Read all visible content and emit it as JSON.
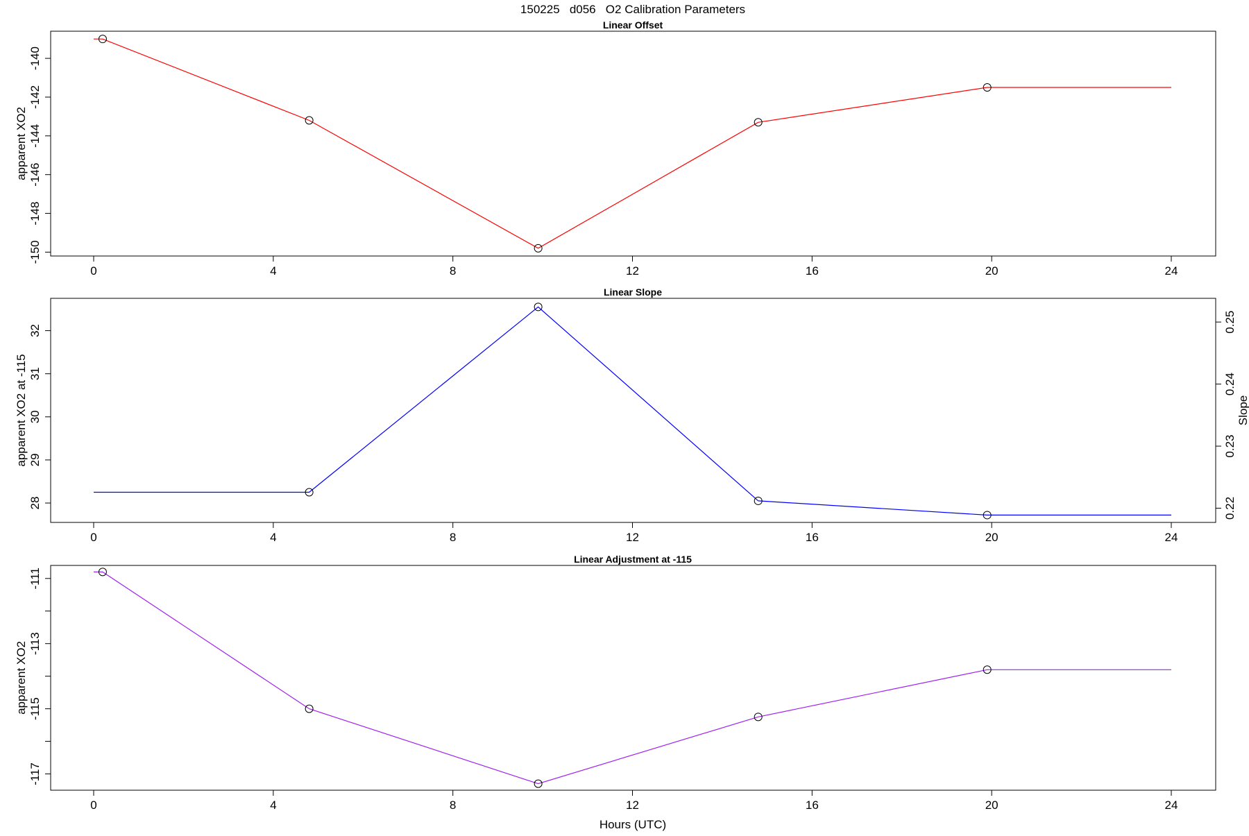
{
  "title": "150225   d056   O2 Calibration Parameters",
  "xlabel": "Hours (UTC)",
  "chart_data": [
    {
      "type": "line",
      "title": "Linear Offset",
      "ylabel": "apparent XO2",
      "xlim": [
        0,
        24
      ],
      "ylim": [
        -150.2,
        -138.6
      ],
      "xticks": [
        0,
        4,
        8,
        12,
        16,
        20,
        24
      ],
      "yticks": [
        -150,
        -148,
        -146,
        -144,
        -142,
        -140
      ],
      "color": "#ff0000",
      "line": {
        "x": [
          0,
          0.2,
          4.8,
          9.9,
          14.8,
          19.9,
          24
        ],
        "y": [
          -139.0,
          -139.0,
          -143.2,
          -149.8,
          -143.3,
          -141.5,
          -141.5
        ]
      },
      "points": {
        "x": [
          0.2,
          4.8,
          9.9,
          14.8,
          19.9
        ],
        "y": [
          -139.0,
          -143.2,
          -149.8,
          -143.3,
          -141.5
        ]
      }
    },
    {
      "type": "line",
      "title": "Linear Slope",
      "ylabel": "apparent XO2 at -115",
      "ylabel_right": "Slope",
      "xlim": [
        0,
        24
      ],
      "ylim": [
        27.55,
        32.75
      ],
      "xticks": [
        0,
        4,
        8,
        12,
        16,
        20,
        24
      ],
      "yticks": [
        28,
        29,
        30,
        31,
        32
      ],
      "yticks_right": [
        0.22,
        0.23,
        0.24,
        0.25
      ],
      "right_axis_map": {
        "values": [
          0.22,
          0.25
        ],
        "left_equiv": [
          27.88,
          32.2
        ]
      },
      "color": "#0000ff",
      "line": {
        "x": [
          0,
          4.8,
          9.9,
          14.8,
          19.9,
          24
        ],
        "y": [
          28.25,
          28.25,
          32.55,
          28.05,
          27.72,
          27.72
        ]
      },
      "points": {
        "x": [
          4.8,
          9.9,
          14.8,
          19.9
        ],
        "y": [
          28.25,
          32.55,
          28.05,
          27.72
        ]
      }
    },
    {
      "type": "line",
      "title": "Linear Adjustment at -115",
      "ylabel": "apparent XO2",
      "xlim": [
        0,
        24
      ],
      "ylim": [
        -117.5,
        -110.6
      ],
      "xticks": [
        0,
        4,
        8,
        12,
        16,
        20,
        24
      ],
      "yticks": [
        -117,
        -116,
        -115,
        -114,
        -113,
        -112,
        -111
      ],
      "ytick_labels": [
        "-117",
        "",
        "-115",
        "",
        "-113",
        "",
        "-111"
      ],
      "color": "#a020f0",
      "line": {
        "x": [
          0,
          0.2,
          4.8,
          9.9,
          14.8,
          19.9,
          24
        ],
        "y": [
          -110.8,
          -110.8,
          -115.0,
          -117.3,
          -115.25,
          -113.8,
          -113.8
        ]
      },
      "points": {
        "x": [
          0.2,
          4.8,
          9.9,
          14.8,
          19.9
        ],
        "y": [
          -110.8,
          -115.0,
          -117.3,
          -115.25,
          -113.8
        ]
      }
    }
  ]
}
